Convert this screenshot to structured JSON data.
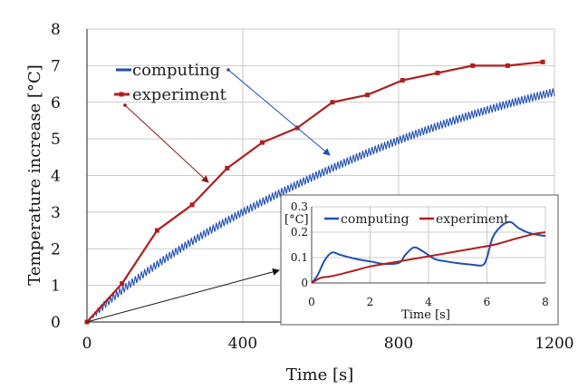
{
  "chart_data": [
    {
      "type": "line",
      "ylabel": "Temperature increase [°C]",
      "xlabel": "Time [s]",
      "xlim": [
        0,
        1200
      ],
      "ylim": [
        0,
        8
      ],
      "x_ticks": [
        "0",
        "400",
        "800",
        "1200"
      ],
      "y_ticks": [
        "0",
        "1",
        "2",
        "3",
        "4",
        "5",
        "6",
        "7",
        "8"
      ],
      "grid": true,
      "legend_position": "upper-left",
      "series": [
        {
          "name": "computing",
          "color": "#1f4fb4",
          "oscillation_amplitude": 0.22,
          "x": [
            0,
            50,
            100,
            150,
            200,
            250,
            300,
            350,
            400,
            450,
            500,
            550,
            600,
            650,
            700,
            750,
            800,
            850,
            900,
            950,
            1000,
            1050,
            1100,
            1150,
            1200
          ],
          "values": [
            0.0,
            0.52,
            0.95,
            1.35,
            1.72,
            2.07,
            2.4,
            2.71,
            3.0,
            3.28,
            3.55,
            3.81,
            4.06,
            4.3,
            4.53,
            4.75,
            4.96,
            5.16,
            5.35,
            5.53,
            5.7,
            5.86,
            6.01,
            6.15,
            6.28
          ]
        },
        {
          "name": "experiment",
          "color": "#b01e1e",
          "x": [
            0,
            90,
            180,
            270,
            360,
            450,
            540,
            630,
            720,
            810,
            900,
            990,
            1080,
            1170
          ],
          "values": [
            0.0,
            1.05,
            2.5,
            3.2,
            4.2,
            4.9,
            5.3,
            6.0,
            6.2,
            6.6,
            6.8,
            7.0,
            7.0,
            7.1
          ]
        }
      ]
    },
    {
      "type": "line",
      "ylabel": "[°C]",
      "xlabel": "Time [s]",
      "xlim": [
        0,
        8
      ],
      "ylim": [
        0,
        0.3
      ],
      "x_ticks": [
        "0",
        "2",
        "4",
        "6",
        "8"
      ],
      "y_ticks": [
        "0",
        "0.1",
        "0.2",
        "0.3"
      ],
      "grid": true,
      "legend_position": "top",
      "series": [
        {
          "name": "computing",
          "color": "#1f4fb4",
          "x": [
            0,
            0.2,
            0.45,
            0.7,
            1.0,
            1.5,
            2.0,
            2.5,
            3.0,
            3.2,
            3.5,
            3.8,
            4.2,
            4.6,
            5.0,
            5.5,
            5.85,
            6.0,
            6.2,
            6.5,
            6.8,
            7.1,
            7.5,
            8.0
          ],
          "values": [
            0.0,
            0.03,
            0.09,
            0.12,
            0.11,
            0.095,
            0.085,
            0.075,
            0.08,
            0.11,
            0.14,
            0.125,
            0.095,
            0.085,
            0.078,
            0.072,
            0.07,
            0.1,
            0.18,
            0.225,
            0.24,
            0.215,
            0.195,
            0.185
          ]
        },
        {
          "name": "experiment",
          "color": "#b01e1e",
          "x": [
            0,
            0.3,
            0.6,
            1.0,
            1.5,
            2.0,
            3.0,
            4.0,
            5.0,
            6.0,
            6.4,
            7.0,
            7.5,
            8.0
          ],
          "values": [
            0.0,
            0.02,
            0.025,
            0.035,
            0.05,
            0.065,
            0.085,
            0.105,
            0.125,
            0.145,
            0.155,
            0.175,
            0.19,
            0.2
          ]
        }
      ]
    }
  ]
}
